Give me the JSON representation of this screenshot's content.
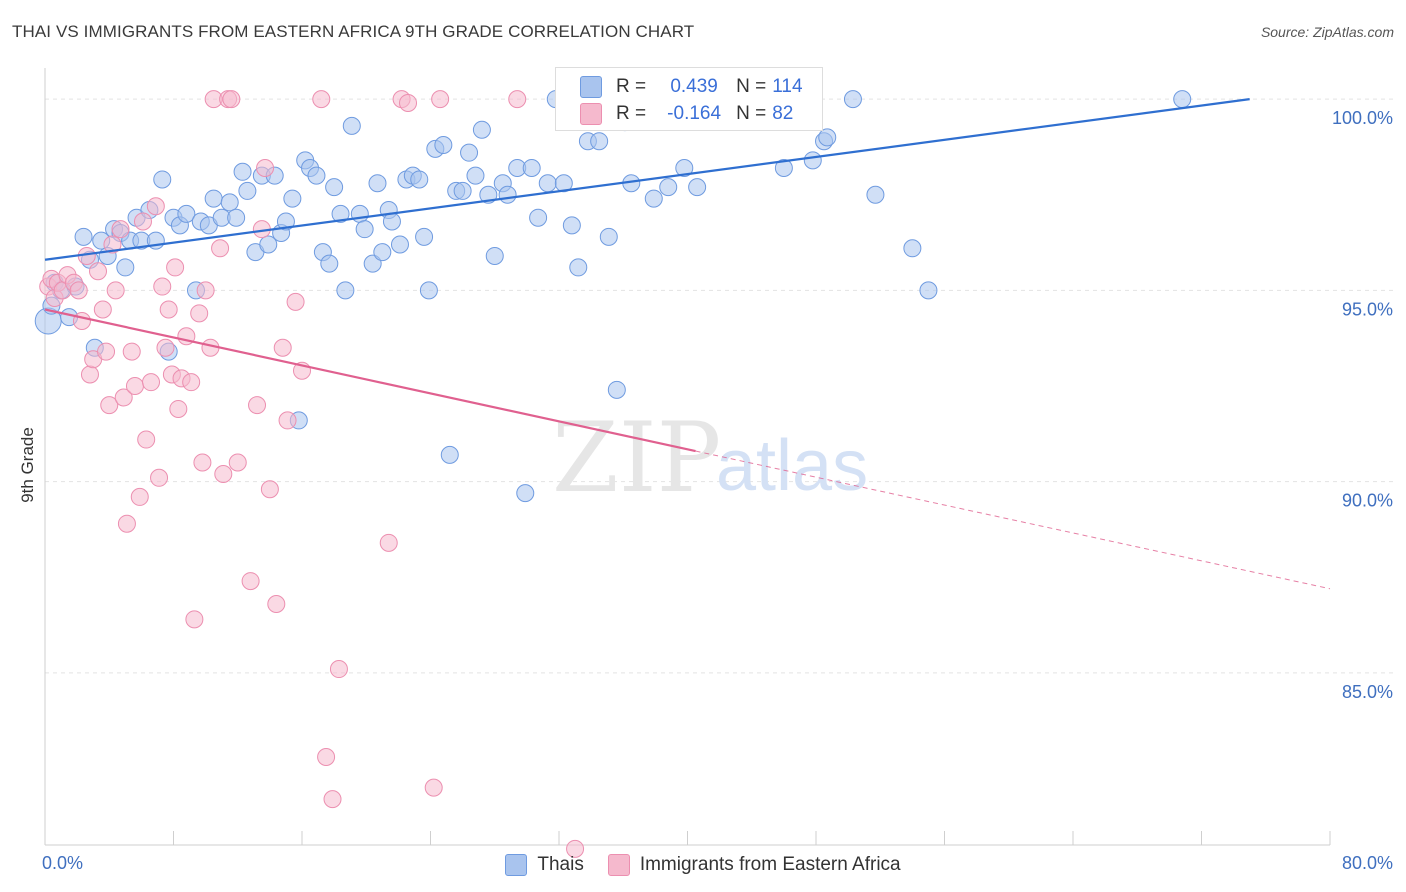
{
  "header": {
    "title": "THAI VS IMMIGRANTS FROM EASTERN AFRICA 9TH GRADE CORRELATION CHART",
    "source": "Source: ZipAtlas.com"
  },
  "watermark": {
    "zip": "ZIP",
    "atlas": "atlas"
  },
  "legend_top": {
    "rows": [
      {
        "r_label": "R =",
        "r_value": "0.439",
        "n_label": "N =",
        "n_value": "114",
        "color": "#a9c4ee"
      },
      {
        "r_label": "R =",
        "r_value": "-0.164",
        "n_label": "N =",
        "n_value": "82",
        "color": "#f5b9cd"
      }
    ]
  },
  "legend_bottom": {
    "items": [
      {
        "label": "Thais",
        "color": "#a9c4ee"
      },
      {
        "label": "Immigrants from Eastern Africa",
        "color": "#f5b9cd"
      }
    ]
  },
  "chart_data": {
    "type": "scatter",
    "title": "THAI VS IMMIGRANTS FROM EASTERN AFRICA 9TH GRADE CORRELATION CHART",
    "xlabel": "",
    "ylabel": "9th Grade",
    "xlim": [
      0,
      80
    ],
    "ylim": [
      80.5,
      100.5
    ],
    "x_ticks": [
      "0.0%",
      "80.0%"
    ],
    "y_ticks": [
      {
        "value": 85,
        "label": "85.0%"
      },
      {
        "value": 90,
        "label": "90.0%"
      },
      {
        "value": 95,
        "label": "95.0%"
      },
      {
        "value": 100,
        "label": "100.0%"
      }
    ],
    "grid": "horizontal dashed",
    "legend_position": "top-center",
    "series": [
      {
        "name": "Thais",
        "color": "#6f9be0",
        "fill": "#a9c4ee",
        "trend": {
          "x": [
            0,
            75
          ],
          "y": [
            95.8,
            100.0
          ],
          "color": "#2f6fd0"
        },
        "points": [
          [
            0.2,
            94.2
          ],
          [
            0.4,
            94.6
          ],
          [
            0.6,
            95.2
          ],
          [
            1.0,
            95.0
          ],
          [
            1.5,
            94.3
          ],
          [
            1.9,
            95.1
          ],
          [
            2.4,
            96.4
          ],
          [
            2.8,
            95.8
          ],
          [
            3.1,
            93.5
          ],
          [
            3.5,
            96.3
          ],
          [
            3.9,
            95.9
          ],
          [
            4.3,
            96.6
          ],
          [
            4.7,
            96.5
          ],
          [
            5.0,
            95.6
          ],
          [
            5.3,
            96.3
          ],
          [
            5.7,
            96.9
          ],
          [
            6.0,
            96.3
          ],
          [
            6.5,
            97.1
          ],
          [
            6.9,
            96.3
          ],
          [
            7.3,
            97.9
          ],
          [
            7.7,
            93.4
          ],
          [
            8.0,
            96.9
          ],
          [
            8.4,
            96.7
          ],
          [
            8.8,
            97.0
          ],
          [
            9.4,
            95.0
          ],
          [
            9.7,
            96.8
          ],
          [
            10.2,
            96.7
          ],
          [
            10.5,
            97.4
          ],
          [
            11.0,
            96.9
          ],
          [
            11.5,
            97.3
          ],
          [
            11.9,
            96.9
          ],
          [
            12.3,
            98.1
          ],
          [
            12.6,
            97.6
          ],
          [
            13.1,
            96.0
          ],
          [
            13.5,
            98.0
          ],
          [
            13.9,
            96.2
          ],
          [
            14.3,
            98.0
          ],
          [
            14.7,
            96.5
          ],
          [
            15.0,
            96.8
          ],
          [
            15.4,
            97.4
          ],
          [
            15.8,
            91.6
          ],
          [
            16.2,
            98.4
          ],
          [
            16.5,
            98.2
          ],
          [
            16.9,
            98.0
          ],
          [
            17.3,
            96.0
          ],
          [
            17.7,
            95.7
          ],
          [
            18.0,
            97.7
          ],
          [
            18.4,
            97.0
          ],
          [
            18.7,
            95.0
          ],
          [
            19.1,
            99.3
          ],
          [
            19.6,
            97.0
          ],
          [
            19.9,
            96.6
          ],
          [
            20.4,
            95.7
          ],
          [
            20.7,
            97.8
          ],
          [
            21.0,
            96.0
          ],
          [
            21.4,
            97.1
          ],
          [
            21.6,
            96.8
          ],
          [
            22.1,
            96.2
          ],
          [
            22.5,
            97.9
          ],
          [
            22.9,
            98.0
          ],
          [
            23.3,
            97.9
          ],
          [
            23.6,
            96.4
          ],
          [
            23.9,
            95.0
          ],
          [
            24.3,
            98.7
          ],
          [
            24.8,
            98.8
          ],
          [
            25.2,
            90.7
          ],
          [
            25.6,
            97.6
          ],
          [
            26.0,
            97.6
          ],
          [
            26.4,
            98.6
          ],
          [
            26.8,
            98.0
          ],
          [
            27.2,
            99.2
          ],
          [
            27.6,
            97.5
          ],
          [
            28.0,
            95.9
          ],
          [
            28.5,
            97.8
          ],
          [
            28.8,
            97.5
          ],
          [
            29.4,
            98.2
          ],
          [
            29.9,
            89.7
          ],
          [
            30.3,
            98.2
          ],
          [
            30.7,
            96.9
          ],
          [
            31.3,
            97.8
          ],
          [
            31.8,
            100.0
          ],
          [
            32.3,
            97.8
          ],
          [
            32.8,
            96.7
          ],
          [
            33.2,
            95.6
          ],
          [
            33.8,
            98.9
          ],
          [
            34.5,
            98.9
          ],
          [
            35.1,
            96.4
          ],
          [
            35.6,
            92.4
          ],
          [
            36.1,
            99.4
          ],
          [
            36.5,
            97.8
          ],
          [
            37.2,
            100.0
          ],
          [
            37.9,
            97.4
          ],
          [
            38.8,
            97.7
          ],
          [
            39.8,
            98.2
          ],
          [
            40.6,
            97.7
          ],
          [
            41.2,
            100.0
          ],
          [
            44.5,
            100.0
          ],
          [
            46.0,
            98.2
          ],
          [
            47.8,
            98.4
          ],
          [
            48.5,
            98.9
          ],
          [
            48.7,
            99.0
          ],
          [
            50.3,
            100.0
          ],
          [
            51.7,
            97.5
          ],
          [
            54.0,
            96.1
          ],
          [
            55.0,
            95.0
          ],
          [
            70.8,
            100.0
          ]
        ]
      },
      {
        "name": "Immigrants from Eastern Africa",
        "color": "#ec8fb0",
        "fill": "#f5b9cd",
        "trend": {
          "x": [
            0,
            40.5
          ],
          "y": [
            94.5,
            90.8
          ],
          "dashed_to": {
            "x": 80,
            "y": 87.2
          },
          "color": "#e0608f"
        },
        "points": [
          [
            0.2,
            95.1
          ],
          [
            0.4,
            95.3
          ],
          [
            0.6,
            94.8
          ],
          [
            0.8,
            95.2
          ],
          [
            1.1,
            95.0
          ],
          [
            1.4,
            95.4
          ],
          [
            1.8,
            95.2
          ],
          [
            2.1,
            95.0
          ],
          [
            2.3,
            94.2
          ],
          [
            2.6,
            95.9
          ],
          [
            2.8,
            92.8
          ],
          [
            3.0,
            93.2
          ],
          [
            3.3,
            95.5
          ],
          [
            3.6,
            94.5
          ],
          [
            3.8,
            93.4
          ],
          [
            4.0,
            92.0
          ],
          [
            4.2,
            96.2
          ],
          [
            4.4,
            95.0
          ],
          [
            4.7,
            96.6
          ],
          [
            4.9,
            92.2
          ],
          [
            5.1,
            88.9
          ],
          [
            5.4,
            93.4
          ],
          [
            5.6,
            92.5
          ],
          [
            5.9,
            89.6
          ],
          [
            6.1,
            96.8
          ],
          [
            6.3,
            91.1
          ],
          [
            6.6,
            92.6
          ],
          [
            6.9,
            97.2
          ],
          [
            7.1,
            90.1
          ],
          [
            7.3,
            95.1
          ],
          [
            7.5,
            93.5
          ],
          [
            7.7,
            94.5
          ],
          [
            7.9,
            92.8
          ],
          [
            8.1,
            95.6
          ],
          [
            8.3,
            91.9
          ],
          [
            8.5,
            92.7
          ],
          [
            8.8,
            93.8
          ],
          [
            9.1,
            92.6
          ],
          [
            9.3,
            86.4
          ],
          [
            9.6,
            94.4
          ],
          [
            9.8,
            90.5
          ],
          [
            10.0,
            95.0
          ],
          [
            10.3,
            93.5
          ],
          [
            10.5,
            100.0
          ],
          [
            10.9,
            96.1
          ],
          [
            11.1,
            90.2
          ],
          [
            11.4,
            100.0
          ],
          [
            11.6,
            100.0
          ],
          [
            12.0,
            90.5
          ],
          [
            12.8,
            87.4
          ],
          [
            13.2,
            92.0
          ],
          [
            13.5,
            96.6
          ],
          [
            13.7,
            98.2
          ],
          [
            14.0,
            89.8
          ],
          [
            14.4,
            86.8
          ],
          [
            14.8,
            93.5
          ],
          [
            15.1,
            91.6
          ],
          [
            15.6,
            94.7
          ],
          [
            16.0,
            92.9
          ],
          [
            17.2,
            100.0
          ],
          [
            17.5,
            82.8
          ],
          [
            17.9,
            81.7
          ],
          [
            18.3,
            85.1
          ],
          [
            21.4,
            88.4
          ],
          [
            22.2,
            100.0
          ],
          [
            22.6,
            99.9
          ],
          [
            24.2,
            82.0
          ],
          [
            24.6,
            100.0
          ],
          [
            29.4,
            100.0
          ],
          [
            33.0,
            80.4
          ]
        ]
      }
    ]
  }
}
